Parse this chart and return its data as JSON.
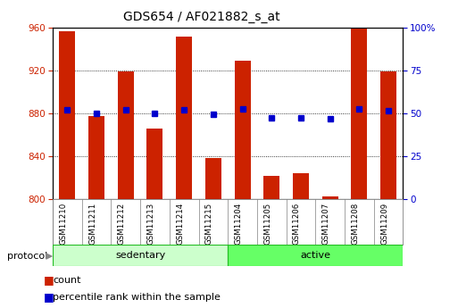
{
  "title": "GDS654 / AF021882_s_at",
  "samples": [
    "GSM11210",
    "GSM11211",
    "GSM11212",
    "GSM11213",
    "GSM11214",
    "GSM11215",
    "GSM11204",
    "GSM11205",
    "GSM11206",
    "GSM11207",
    "GSM11208",
    "GSM11209"
  ],
  "counts": [
    957,
    877,
    919,
    866,
    952,
    838,
    929,
    821,
    824,
    802,
    959,
    919
  ],
  "percentile_left": [
    883,
    880,
    883,
    880,
    883,
    879,
    884,
    876,
    876,
    875,
    884,
    882
  ],
  "bar_color": "#cc2200",
  "dot_color": "#0000cc",
  "ylim_left": [
    800,
    960
  ],
  "ylim_right": [
    0,
    100
  ],
  "yticks_left": [
    800,
    840,
    880,
    920,
    960
  ],
  "yticks_right": [
    0,
    25,
    50,
    75,
    100
  ],
  "title_fontsize": 10,
  "tick_fontsize": 7.5,
  "label_fontsize": 8,
  "sedentary_color": "#ccffcc",
  "active_color": "#66ff66",
  "group_border_color": "#22bb22",
  "legend_count_label": "count",
  "legend_pct_label": "percentile rank within the sample",
  "protocol_label": "protocol"
}
